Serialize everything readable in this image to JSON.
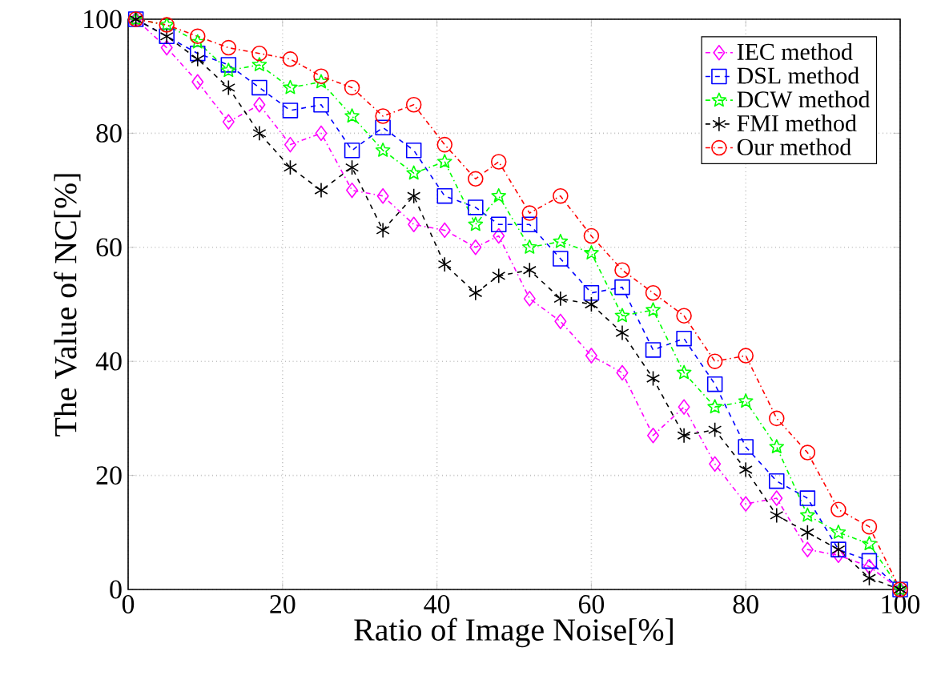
{
  "chart_data": {
    "type": "line",
    "xlabel": "Ratio of Image Noise[%]",
    "ylabel": "The Value of NC[%]",
    "x": [
      1,
      5,
      9,
      13,
      17,
      21,
      25,
      29,
      33,
      37,
      41,
      45,
      48,
      52,
      56,
      60,
      64,
      68,
      72,
      76,
      80,
      84,
      88,
      92,
      96,
      100
    ],
    "xlim": [
      0,
      100
    ],
    "ylim": [
      0,
      100
    ],
    "xticks": [
      0,
      20,
      40,
      60,
      80,
      100
    ],
    "yticks": [
      0,
      20,
      40,
      60,
      80,
      100
    ],
    "grid": true,
    "legend": "top right",
    "series": [
      {
        "name": "IEC method",
        "color": "#ff00ff",
        "marker": "diamond",
        "line_style": "dashdot",
        "values": [
          100,
          95,
          89,
          82,
          85,
          78,
          80,
          70,
          69,
          64,
          63,
          60,
          62,
          51,
          47,
          41,
          38,
          27,
          32,
          22,
          15,
          16,
          7,
          6,
          4,
          0
        ]
      },
      {
        "name": "DSL method",
        "color": "#0000ff",
        "marker": "square",
        "line_style": "dashed",
        "values": [
          100,
          97,
          94,
          92,
          88,
          84,
          85,
          77,
          81,
          77,
          69,
          67,
          64,
          64,
          58,
          52,
          53,
          42,
          44,
          36,
          25,
          19,
          16,
          7,
          5,
          0
        ]
      },
      {
        "name": "DCW method",
        "color": "#00ff00",
        "marker": "star",
        "line_style": "dashdot",
        "values": [
          100,
          99,
          96,
          91,
          92,
          88,
          89,
          83,
          77,
          73,
          75,
          64,
          69,
          60,
          61,
          59,
          48,
          49,
          38,
          32,
          33,
          25,
          13,
          10,
          8,
          0
        ]
      },
      {
        "name": "FMI method",
        "color": "#000000",
        "marker": "cross",
        "line_style": "dashed",
        "values": [
          100,
          97,
          93,
          88,
          80,
          74,
          70,
          74,
          63,
          69,
          57,
          52,
          55,
          56,
          51,
          50,
          45,
          37,
          27,
          28,
          21,
          13,
          10,
          7,
          2,
          0
        ]
      },
      {
        "name": "Our method",
        "color": "#ff0000",
        "marker": "circle",
        "line_style": "dashdot",
        "values": [
          100,
          99,
          97,
          95,
          94,
          93,
          90,
          88,
          83,
          85,
          78,
          72,
          75,
          66,
          69,
          62,
          56,
          52,
          48,
          40,
          41,
          30,
          24,
          14,
          11,
          0
        ]
      }
    ]
  }
}
